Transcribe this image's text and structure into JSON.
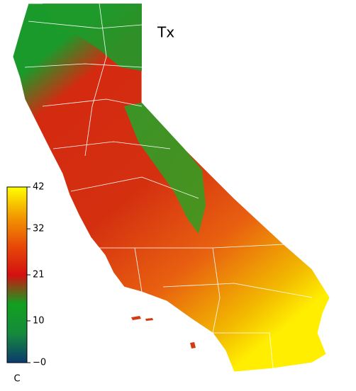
{
  "title": "Tx",
  "colorbar": {
    "lim": [
      0,
      42
    ],
    "ticks": [
      {
        "value": 0,
        "label": "−0"
      },
      10,
      21,
      32,
      42
    ],
    "unit": "C",
    "colors": [
      "#0b3a6e",
      "#168a3c",
      "#12a020",
      "#d41010",
      "#e84a08",
      "#f29a00",
      "#ffff00"
    ]
  }
}
